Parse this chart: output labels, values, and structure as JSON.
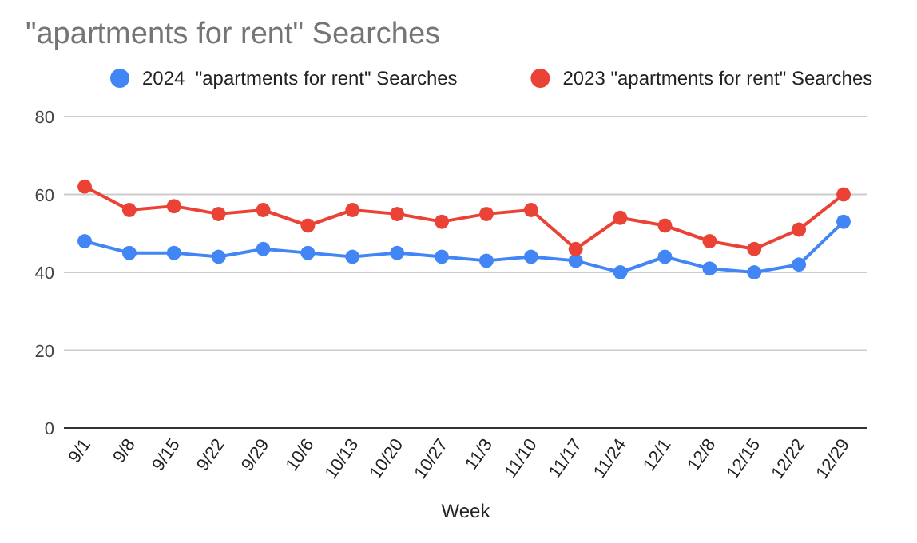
{
  "chart_data": {
    "type": "line",
    "title": "\"apartments for rent\" Searches",
    "xlabel": "Week",
    "categories": [
      "9/1",
      "9/8",
      "9/15",
      "9/22",
      "9/29",
      "10/6",
      "10/13",
      "10/20",
      "10/27",
      "11/3",
      "11/10",
      "11/17",
      "11/24",
      "12/1",
      "12/8",
      "12/15",
      "12/22",
      "12/29"
    ],
    "series": [
      {
        "name": "2024  \"apartments for rent\" Searches",
        "color": "#4285f4",
        "values": [
          48,
          45,
          45,
          44,
          46,
          45,
          44,
          45,
          44,
          43,
          44,
          43,
          40,
          44,
          41,
          40,
          42,
          53
        ]
      },
      {
        "name": "2023 \"apartments for rent\" Searches",
        "color": "#ea4335",
        "values": [
          62,
          56,
          57,
          55,
          56,
          52,
          56,
          55,
          53,
          55,
          56,
          46,
          54,
          52,
          48,
          46,
          51,
          60
        ]
      }
    ],
    "ylim": [
      0,
      80
    ],
    "yticks": [
      0,
      20,
      40,
      60,
      80
    ],
    "grid": "y",
    "legend": "top",
    "marker": "circle",
    "line_style": "solid"
  }
}
